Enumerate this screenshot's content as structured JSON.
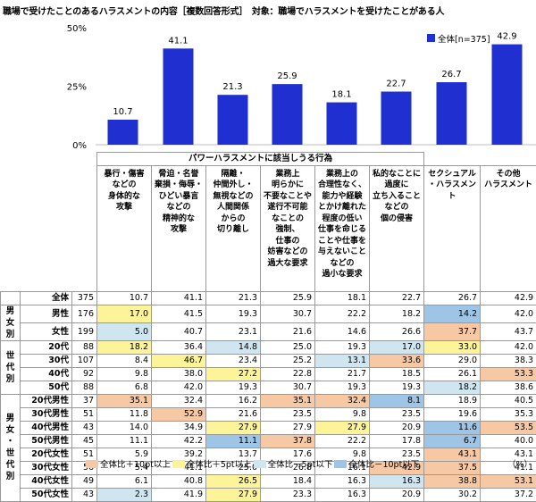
{
  "title": "職場で受けたことのあるハラスメントの内容［複数回答形式］　対象：職場でハラスメントを受けたことがある人",
  "chart_data": {
    "type": "bar",
    "categories": [
      "暴行・傷害などの身体的な攻撃",
      "脅迫・名誉棄損・侮辱・ひどい暴言などの精神的な攻撃",
      "隔離・仲間外し・無視などの人間関係からの切り離し",
      "業務上明らかに不要なことや遂行不可能なことの強制、仕事の妨害などの過大な要求",
      "業務上の合理性なく、能力や経験とかけ離れた程度の低い仕事を命じることや仕事を与えないことなどの過小な要求",
      "私的なことに過度に立ち入ることなどの個の侵害",
      "セクシュアル・ハラスメント",
      "その他ハラスメント"
    ],
    "series": [
      {
        "name": "全体[n=375]",
        "values": [
          10.7,
          41.1,
          21.3,
          25.9,
          18.1,
          22.7,
          26.7,
          42.9
        ]
      }
    ],
    "yticks": [
      "0%",
      "25%",
      "50%"
    ],
    "ylim": [
      0,
      50
    ],
    "color": "#1f2fd0"
  },
  "table": {
    "group_header": "パワーハラスメントに該当しうる行為",
    "headers": [
      [
        "暴行・傷害",
        "などの",
        "身体的な",
        "攻撃"
      ],
      [
        "脅迫・名誉",
        "棄損・侮辱・",
        "ひどい暴言",
        "などの",
        "精神的な",
        "攻撃"
      ],
      [
        "隔離・",
        "仲間外し・",
        "無視などの",
        "人間関係",
        "からの",
        "切り離し"
      ],
      [
        "業務上",
        "明らかに",
        "不要なことや",
        "遂行不可能",
        "なことの",
        "強制、",
        "仕事の",
        "妨害などの",
        "過大な要求"
      ],
      [
        "業務上の",
        "合理性なく、",
        "能力や経験",
        "とかけ離れた",
        "程度の低い",
        "仕事を命じる",
        "ことや仕事を",
        "与えないこと",
        "などの",
        "過小な要求"
      ],
      [
        "私的なことに",
        "過度に",
        "立ち入ること",
        "などの",
        "個の侵害"
      ],
      [
        "セクシュアル",
        "・ハラスメント"
      ],
      [
        "その他",
        "ハラスメント"
      ]
    ],
    "groups": [
      {
        "label": "",
        "rows": [
          {
            "label": "全体",
            "n": "375",
            "cells": [
              [
                "10.7",
                ""
              ],
              [
                "41.1",
                ""
              ],
              [
                "21.3",
                ""
              ],
              [
                "25.9",
                ""
              ],
              [
                "18.1",
                ""
              ],
              [
                "22.7",
                ""
              ],
              [
                "26.7",
                ""
              ],
              [
                "42.9",
                ""
              ]
            ]
          }
        ]
      },
      {
        "label": "男女別",
        "rows": [
          {
            "label": "男性",
            "n": "176",
            "cells": [
              [
                "17.0",
                "hl2"
              ],
              [
                "41.5",
                ""
              ],
              [
                "19.3",
                ""
              ],
              [
                "30.7",
                ""
              ],
              [
                "22.2",
                ""
              ],
              [
                "18.2",
                ""
              ],
              [
                "14.2",
                "hl4"
              ],
              [
                "42.0",
                ""
              ]
            ]
          },
          {
            "label": "女性",
            "n": "199",
            "cells": [
              [
                "5.0",
                "hl3"
              ],
              [
                "40.7",
                ""
              ],
              [
                "23.1",
                ""
              ],
              [
                "21.6",
                ""
              ],
              [
                "14.6",
                ""
              ],
              [
                "26.6",
                ""
              ],
              [
                "37.7",
                "hl1"
              ],
              [
                "43.7",
                ""
              ]
            ]
          }
        ]
      },
      {
        "label": "世代別",
        "rows": [
          {
            "label": "20代",
            "n": "88",
            "cells": [
              [
                "18.2",
                "hl2"
              ],
              [
                "36.4",
                ""
              ],
              [
                "14.8",
                "hl3"
              ],
              [
                "25.0",
                ""
              ],
              [
                "19.3",
                ""
              ],
              [
                "17.0",
                "hl3"
              ],
              [
                "33.0",
                "hl2"
              ],
              [
                "42.0",
                ""
              ]
            ]
          },
          {
            "label": "30代",
            "n": "107",
            "cells": [
              [
                "8.4",
                ""
              ],
              [
                "46.7",
                "hl2"
              ],
              [
                "23.4",
                ""
              ],
              [
                "25.2",
                ""
              ],
              [
                "13.1",
                "hl3"
              ],
              [
                "33.6",
                "hl1"
              ],
              [
                "29.0",
                ""
              ],
              [
                "38.3",
                ""
              ]
            ]
          },
          {
            "label": "40代",
            "n": "92",
            "cells": [
              [
                "9.8",
                ""
              ],
              [
                "38.0",
                ""
              ],
              [
                "27.2",
                "hl2"
              ],
              [
                "22.8",
                ""
              ],
              [
                "21.7",
                ""
              ],
              [
                "18.5",
                ""
              ],
              [
                "26.1",
                ""
              ],
              [
                "53.3",
                "hl1"
              ]
            ]
          },
          {
            "label": "50代",
            "n": "88",
            "cells": [
              [
                "6.8",
                ""
              ],
              [
                "42.0",
                ""
              ],
              [
                "19.3",
                ""
              ],
              [
                "30.7",
                ""
              ],
              [
                "19.3",
                ""
              ],
              [
                "19.3",
                ""
              ],
              [
                "18.2",
                "hl3"
              ],
              [
                "38.6",
                ""
              ]
            ]
          }
        ]
      },
      {
        "label": "男女・世代別",
        "rows": [
          {
            "label": "20代男性",
            "n": "37",
            "cells": [
              [
                "35.1",
                "hl1"
              ],
              [
                "32.4",
                ""
              ],
              [
                "16.2",
                ""
              ],
              [
                "35.1",
                "hl1"
              ],
              [
                "32.4",
                "hl1"
              ],
              [
                "8.1",
                "hl4"
              ],
              [
                "18.9",
                ""
              ],
              [
                "40.5",
                ""
              ]
            ]
          },
          {
            "label": "30代男性",
            "n": "51",
            "cells": [
              [
                "11.8",
                ""
              ],
              [
                "52.9",
                "hl1"
              ],
              [
                "21.6",
                ""
              ],
              [
                "23.5",
                ""
              ],
              [
                "9.8",
                ""
              ],
              [
                "23.5",
                ""
              ],
              [
                "19.6",
                ""
              ],
              [
                "35.3",
                ""
              ]
            ]
          },
          {
            "label": "40代男性",
            "n": "43",
            "cells": [
              [
                "14.0",
                ""
              ],
              [
                "34.9",
                ""
              ],
              [
                "27.9",
                "hl2"
              ],
              [
                "27.9",
                ""
              ],
              [
                "27.9",
                "hl2"
              ],
              [
                "20.9",
                ""
              ],
              [
                "11.6",
                "hl4"
              ],
              [
                "53.5",
                "hl1"
              ]
            ]
          },
          {
            "label": "50代男性",
            "n": "45",
            "cells": [
              [
                "11.1",
                ""
              ],
              [
                "42.2",
                ""
              ],
              [
                "11.1",
                "hl4"
              ],
              [
                "37.8",
                "hl1"
              ],
              [
                "22.2",
                ""
              ],
              [
                "17.8",
                ""
              ],
              [
                "6.7",
                "hl4"
              ],
              [
                "40.0",
                ""
              ]
            ]
          },
          {
            "label": "20代女性",
            "n": "51",
            "cells": [
              [
                "5.9",
                ""
              ],
              [
                "39.2",
                ""
              ],
              [
                "13.7",
                ""
              ],
              [
                "17.6",
                ""
              ],
              [
                "9.8",
                ""
              ],
              [
                "23.5",
                ""
              ],
              [
                "43.1",
                "hl1"
              ],
              [
                "43.1",
                ""
              ]
            ]
          },
          {
            "label": "30代女性",
            "n": "56",
            "cells": [
              [
                "5.4",
                ""
              ],
              [
                "41.1",
                ""
              ],
              [
                "25.0",
                ""
              ],
              [
                "26.8",
                ""
              ],
              [
                "16.1",
                ""
              ],
              [
                "42.9",
                "hl1"
              ],
              [
                "37.5",
                "hl1"
              ],
              [
                "41.1",
                ""
              ]
            ]
          },
          {
            "label": "40代女性",
            "n": "49",
            "cells": [
              [
                "6.1",
                ""
              ],
              [
                "40.8",
                ""
              ],
              [
                "26.5",
                "hl2"
              ],
              [
                "18.4",
                ""
              ],
              [
                "16.3",
                ""
              ],
              [
                "16.3",
                "hl3"
              ],
              [
                "38.8",
                "hl1"
              ],
              [
                "53.1",
                "hl1"
              ]
            ]
          },
          {
            "label": "50代女性",
            "n": "43",
            "cells": [
              [
                "2.3",
                "hl3"
              ],
              [
                "41.9",
                ""
              ],
              [
                "27.9",
                "hl2"
              ],
              [
                "23.3",
                ""
              ],
              [
                "16.3",
                ""
              ],
              [
                "20.9",
                ""
              ],
              [
                "30.2",
                ""
              ],
              [
                "37.2",
                ""
              ]
            ]
          }
        ]
      }
    ]
  },
  "legend": [
    {
      "label": "全体比＋10pt以上",
      "color": "#f7c8a4"
    },
    {
      "label": "全体比＋5pt以上",
      "color": "#fdf49a"
    },
    {
      "label": "全体比－5pt以下",
      "color": "#cfe6f1"
    },
    {
      "label": "全体比－10pt以下",
      "color": "#9ec5e6"
    }
  ],
  "unit": "（%）"
}
